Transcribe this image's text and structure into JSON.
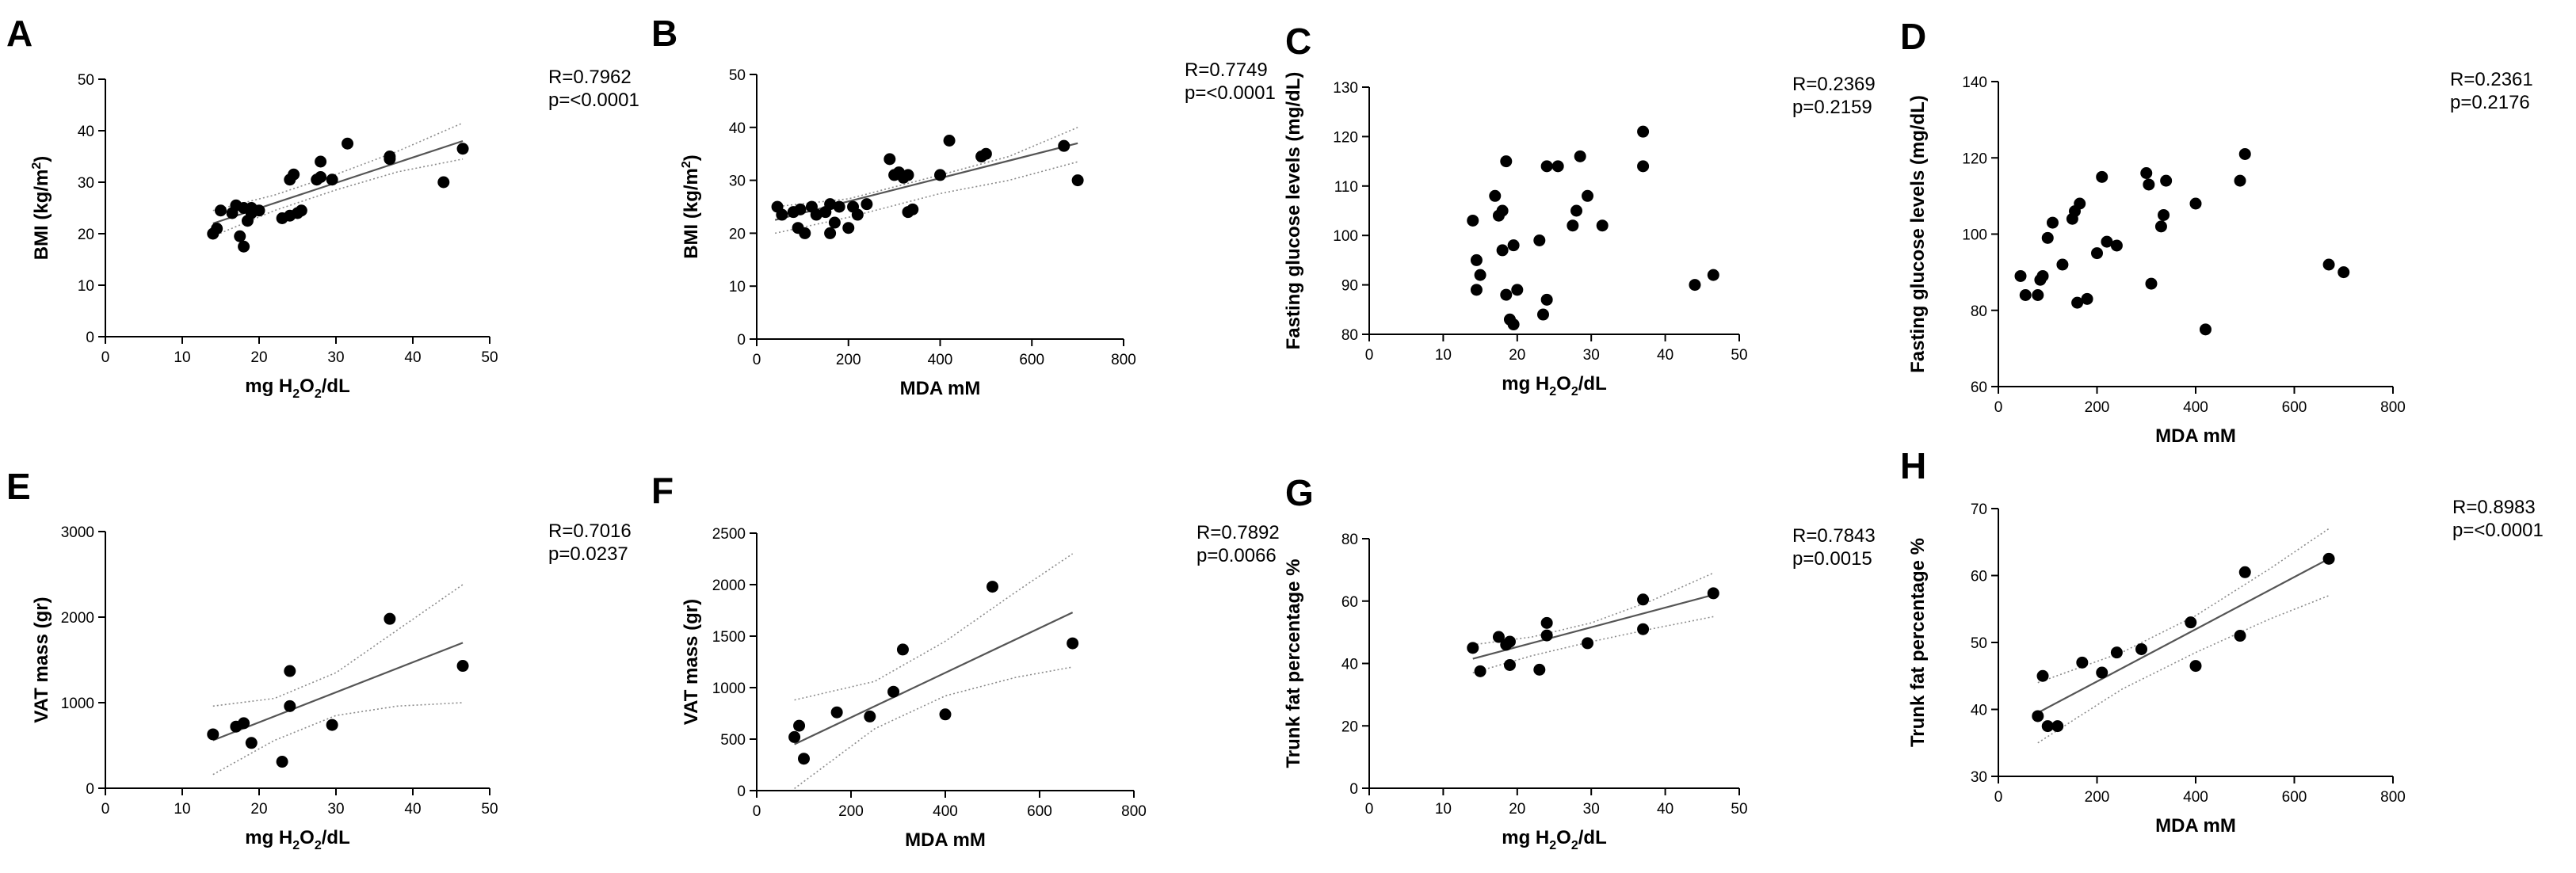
{
  "figure": {
    "background": "#ffffff",
    "point_color": "#000000",
    "line_color": "#555555",
    "ci_color": "#8c8c8c"
  },
  "chart_data": [
    {
      "id": "A",
      "type": "scatter",
      "xlabel": "mg H2O2/dL",
      "ylabel": "BMI (kg/m2)",
      "xlim": [
        0,
        50
      ],
      "ylim": [
        0,
        50
      ],
      "xticks": [
        0,
        10,
        20,
        30,
        40,
        50
      ],
      "yticks": [
        0,
        10,
        20,
        30,
        40,
        50
      ],
      "stats": {
        "r": "R=0.7962",
        "p": "p=<0.0001"
      },
      "fit": {
        "x": [
          14,
          46.5
        ],
        "y": [
          22,
          38
        ]
      },
      "ci_upper": {
        "x": [
          14,
          22,
          30,
          38,
          46.5
        ],
        "y": [
          24.5,
          27.5,
          31.5,
          36,
          41.5
        ]
      },
      "ci_lower": {
        "x": [
          14,
          22,
          30,
          38,
          46.5
        ],
        "y": [
          19.5,
          24.5,
          28.5,
          32,
          34.5
        ]
      },
      "points": [
        [
          14,
          20
        ],
        [
          14.5,
          21
        ],
        [
          15,
          24.5
        ],
        [
          16.5,
          24
        ],
        [
          17,
          25.5
        ],
        [
          17.5,
          19.5
        ],
        [
          18,
          25
        ],
        [
          18,
          17.5
        ],
        [
          18.5,
          22.5
        ],
        [
          19,
          25
        ],
        [
          19,
          24
        ],
        [
          20,
          24.5
        ],
        [
          23,
          23
        ],
        [
          24,
          23.5
        ],
        [
          24,
          30.5
        ],
        [
          24.5,
          31.5
        ],
        [
          25,
          24
        ],
        [
          25.5,
          24.5
        ],
        [
          27.5,
          30.5
        ],
        [
          28,
          31
        ],
        [
          28,
          34
        ],
        [
          29.5,
          30.5
        ],
        [
          31.5,
          37.5
        ],
        [
          37,
          34.5
        ],
        [
          37,
          35
        ],
        [
          44,
          30
        ],
        [
          46.5,
          36.5
        ]
      ]
    },
    {
      "id": "B",
      "type": "scatter",
      "xlabel": "MDA mM",
      "ylabel": "BMI (kg/m2)",
      "xlim": [
        0,
        800
      ],
      "ylim": [
        0,
        50
      ],
      "xticks": [
        0,
        200,
        400,
        600,
        800
      ],
      "yticks": [
        0,
        10,
        20,
        30,
        40,
        50
      ],
      "stats": {
        "r": "R=0.7749",
        "p": "p=<0.0001"
      },
      "fit": {
        "x": [
          40,
          700
        ],
        "y": [
          22.5,
          37
        ]
      },
      "ci_upper": {
        "x": [
          40,
          200,
          400,
          550,
          700
        ],
        "y": [
          25,
          26.5,
          31,
          34.5,
          40
        ]
      },
      "ci_lower": {
        "x": [
          40,
          200,
          400,
          550,
          700
        ],
        "y": [
          20,
          23,
          27.5,
          30,
          33.5
        ]
      },
      "points": [
        [
          45,
          25
        ],
        [
          55,
          23.5
        ],
        [
          80,
          24
        ],
        [
          90,
          21
        ],
        [
          95,
          24.5
        ],
        [
          105,
          20
        ],
        [
          120,
          25
        ],
        [
          130,
          23.5
        ],
        [
          150,
          24
        ],
        [
          160,
          25.5
        ],
        [
          160,
          20
        ],
        [
          170,
          22
        ],
        [
          180,
          25
        ],
        [
          200,
          21
        ],
        [
          210,
          25
        ],
        [
          220,
          23.5
        ],
        [
          240,
          25.5
        ],
        [
          290,
          34
        ],
        [
          300,
          31
        ],
        [
          310,
          31.5
        ],
        [
          320,
          30.5
        ],
        [
          330,
          31
        ],
        [
          330,
          24
        ],
        [
          340,
          24.5
        ],
        [
          400,
          31
        ],
        [
          420,
          37.5
        ],
        [
          490,
          34.5
        ],
        [
          500,
          35
        ],
        [
          670,
          36.5
        ],
        [
          700,
          30
        ]
      ]
    },
    {
      "id": "C",
      "type": "scatter",
      "xlabel": "mg H2O2/dL",
      "ylabel": "Fasting glucose levels (mg/dL)",
      "xlim": [
        0,
        50
      ],
      "ylim": [
        80,
        130
      ],
      "xticks": [
        0,
        10,
        20,
        30,
        40,
        50
      ],
      "yticks": [
        80,
        90,
        100,
        110,
        120,
        130
      ],
      "stats": {
        "r": "R=0.2369",
        "p": "p=0.2159"
      },
      "points": [
        [
          14,
          103
        ],
        [
          14.5,
          95
        ],
        [
          15,
          92
        ],
        [
          14.5,
          89
        ],
        [
          17,
          108
        ],
        [
          17.5,
          104
        ],
        [
          18,
          105
        ],
        [
          18,
          97
        ],
        [
          18.5,
          115
        ],
        [
          18.5,
          88
        ],
        [
          19,
          83
        ],
        [
          19.5,
          82
        ],
        [
          19.5,
          98
        ],
        [
          20,
          89
        ],
        [
          23,
          99
        ],
        [
          23.5,
          84
        ],
        [
          24,
          87
        ],
        [
          24,
          114
        ],
        [
          25.5,
          114
        ],
        [
          27.5,
          102
        ],
        [
          28,
          105
        ],
        [
          28.5,
          116
        ],
        [
          29.5,
          108
        ],
        [
          31.5,
          102
        ],
        [
          37,
          121
        ],
        [
          37,
          114
        ],
        [
          44,
          90
        ],
        [
          46.5,
          92
        ]
      ]
    },
    {
      "id": "D",
      "type": "scatter",
      "xlabel": "MDA mM",
      "ylabel": "Fasting glucose levels (mg/dL)",
      "xlim": [
        0,
        800
      ],
      "ylim": [
        60,
        140
      ],
      "xticks": [
        0,
        200,
        400,
        600,
        800
      ],
      "yticks": [
        60,
        80,
        100,
        120,
        140
      ],
      "stats": {
        "r": "R=0.2361",
        "p": "p=0.2176"
      },
      "points": [
        [
          45,
          89
        ],
        [
          55,
          84
        ],
        [
          80,
          84
        ],
        [
          85,
          88
        ],
        [
          90,
          89
        ],
        [
          100,
          99
        ],
        [
          110,
          103
        ],
        [
          130,
          92
        ],
        [
          150,
          104
        ],
        [
          155,
          106
        ],
        [
          160,
          82
        ],
        [
          165,
          108
        ],
        [
          180,
          83
        ],
        [
          200,
          95
        ],
        [
          210,
          115
        ],
        [
          220,
          98
        ],
        [
          240,
          97
        ],
        [
          300,
          116
        ],
        [
          305,
          113
        ],
        [
          310,
          87
        ],
        [
          330,
          102
        ],
        [
          335,
          105
        ],
        [
          340,
          114
        ],
        [
          400,
          108
        ],
        [
          420,
          75
        ],
        [
          490,
          114
        ],
        [
          500,
          121
        ],
        [
          670,
          92
        ],
        [
          700,
          90
        ]
      ]
    },
    {
      "id": "E",
      "type": "scatter",
      "xlabel": "mg H2O2/dL",
      "ylabel": "VAT mass (gr)",
      "xlim": [
        0,
        50
      ],
      "ylim": [
        0,
        3000
      ],
      "xticks": [
        0,
        10,
        20,
        30,
        40,
        50
      ],
      "yticks": [
        0,
        1000,
        2000,
        3000
      ],
      "stats": {
        "r": "R=0.7016",
        "p": "p=0.0237"
      },
      "fit": {
        "x": [
          14,
          46.5
        ],
        "y": [
          560,
          1700
        ]
      },
      "ci_upper": {
        "x": [
          14,
          22,
          30,
          38,
          46.5
        ],
        "y": [
          960,
          1050,
          1350,
          1850,
          2380
        ]
      },
      "ci_lower": {
        "x": [
          14,
          22,
          30,
          38,
          46.5
        ],
        "y": [
          160,
          560,
          850,
          960,
          1000
        ]
      },
      "points": [
        [
          14,
          630
        ],
        [
          17,
          720
        ],
        [
          18,
          760
        ],
        [
          19,
          530
        ],
        [
          23,
          310
        ],
        [
          24,
          960
        ],
        [
          24,
          1370
        ],
        [
          29.5,
          740
        ],
        [
          37,
          1980
        ],
        [
          46.5,
          1430
        ]
      ]
    },
    {
      "id": "F",
      "type": "scatter",
      "xlabel": "MDA mM",
      "ylabel": "VAT mass (gr)",
      "xlim": [
        0,
        800
      ],
      "ylim": [
        0,
        2500
      ],
      "xticks": [
        0,
        200,
        400,
        600,
        800
      ],
      "yticks": [
        0,
        500,
        1000,
        1500,
        2000,
        2500
      ],
      "stats": {
        "r": "R=0.7892",
        "p": "p=0.0066"
      },
      "fit": {
        "x": [
          80,
          670
        ],
        "y": [
          450,
          1730
        ]
      },
      "ci_upper": {
        "x": [
          80,
          250,
          400,
          550,
          670
        ],
        "y": [
          880,
          1060,
          1450,
          1930,
          2300
        ]
      },
      "ci_lower": {
        "x": [
          80,
          250,
          400,
          550,
          670
        ],
        "y": [
          20,
          600,
          920,
          1100,
          1200
        ]
      },
      "points": [
        [
          80,
          520
        ],
        [
          90,
          630
        ],
        [
          100,
          310
        ],
        [
          170,
          760
        ],
        [
          240,
          720
        ],
        [
          290,
          960
        ],
        [
          310,
          1370
        ],
        [
          400,
          740
        ],
        [
          500,
          1980
        ],
        [
          670,
          1430
        ]
      ]
    },
    {
      "id": "G",
      "type": "scatter",
      "xlabel": "mg H2O2/dL",
      "ylabel": "Trunk fat percentage %",
      "xlim": [
        0,
        50
      ],
      "ylim": [
        0,
        80
      ],
      "xticks": [
        0,
        10,
        20,
        30,
        40,
        50
      ],
      "yticks": [
        0,
        20,
        40,
        60,
        80
      ],
      "stats": {
        "r": "R=0.7843",
        "p": "p=0.0015"
      },
      "fit": {
        "x": [
          14,
          46.5
        ],
        "y": [
          41.5,
          62
        ]
      },
      "ci_upper": {
        "x": [
          14,
          22,
          30,
          38,
          46.5
        ],
        "y": [
          46,
          48.5,
          53,
          60,
          69
        ]
      },
      "ci_lower": {
        "x": [
          14,
          22,
          30,
          38,
          46.5
        ],
        "y": [
          37,
          42.5,
          47,
          51,
          55
        ]
      },
      "points": [
        [
          14,
          45
        ],
        [
          15,
          37.5
        ],
        [
          17.5,
          48.5
        ],
        [
          18.5,
          46
        ],
        [
          19,
          47
        ],
        [
          19,
          39.5
        ],
        [
          23,
          38
        ],
        [
          24,
          53
        ],
        [
          24,
          49
        ],
        [
          29.5,
          46.5
        ],
        [
          37,
          60.5
        ],
        [
          37,
          51
        ],
        [
          46.5,
          62.5
        ]
      ]
    },
    {
      "id": "H",
      "type": "scatter",
      "xlabel": "MDA mM",
      "ylabel": "Trunk fat percentage %",
      "xlim": [
        0,
        800
      ],
      "ylim": [
        30,
        70
      ],
      "xticks": [
        0,
        200,
        400,
        600,
        800
      ],
      "yticks": [
        30,
        40,
        50,
        60,
        70
      ],
      "stats": {
        "r": "R=0.8983",
        "p": "p=<0.0001"
      },
      "fit": {
        "x": [
          80,
          670
        ],
        "y": [
          39.5,
          62.5
        ]
      },
      "ci_upper": {
        "x": [
          80,
          250,
          400,
          550,
          670
        ],
        "y": [
          44,
          48.5,
          54,
          61,
          67
        ]
      },
      "ci_lower": {
        "x": [
          80,
          250,
          400,
          550,
          670
        ],
        "y": [
          35,
          43,
          48.5,
          53.5,
          57
        ]
      },
      "points": [
        [
          80,
          39
        ],
        [
          90,
          45
        ],
        [
          100,
          37.5
        ],
        [
          120,
          37.5
        ],
        [
          170,
          47
        ],
        [
          210,
          45.5
        ],
        [
          240,
          48.5
        ],
        [
          290,
          49
        ],
        [
          390,
          53
        ],
        [
          400,
          46.5
        ],
        [
          490,
          51
        ],
        [
          500,
          60.5
        ],
        [
          670,
          62.5
        ]
      ]
    }
  ]
}
